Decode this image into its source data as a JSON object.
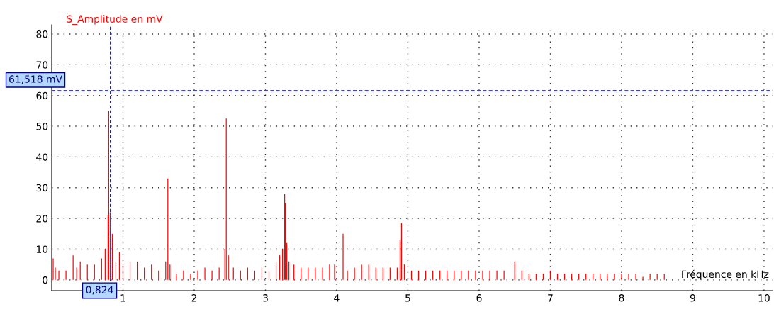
{
  "chart_data": {
    "type": "bar",
    "ylabel": "S_Amplitude en mV",
    "xlabel": "Fréquence en kHz",
    "x": [
      0.02,
      0.05,
      0.1,
      0.2,
      0.3,
      0.35,
      0.4,
      0.5,
      0.6,
      0.7,
      0.75,
      0.79,
      0.8,
      0.82,
      0.85,
      0.9,
      0.95,
      1.0,
      1.1,
      1.2,
      1.3,
      1.4,
      1.5,
      1.6,
      1.63,
      1.66,
      1.75,
      1.85,
      1.95,
      2.05,
      2.15,
      2.25,
      2.35,
      2.43,
      2.45,
      2.48,
      2.55,
      2.65,
      2.75,
      2.85,
      2.95,
      3.05,
      3.15,
      3.2,
      3.24,
      3.27,
      3.28,
      3.3,
      3.33,
      3.4,
      3.5,
      3.6,
      3.7,
      3.8,
      3.9,
      3.97,
      4.09,
      4.15,
      4.25,
      4.35,
      4.45,
      4.55,
      4.65,
      4.75,
      4.85,
      4.89,
      4.91,
      4.95,
      5.05,
      5.15,
      5.25,
      5.35,
      5.45,
      5.55,
      5.65,
      5.75,
      5.85,
      5.95,
      6.05,
      6.15,
      6.25,
      6.35,
      6.5,
      6.6,
      6.7,
      6.8,
      6.9,
      7.0,
      7.1,
      7.2,
      7.3,
      7.4,
      7.5,
      7.6,
      7.7,
      7.8,
      7.9,
      8.0,
      8.1,
      8.2,
      8.3,
      8.4,
      8.5,
      8.6
    ],
    "values": [
      7,
      4,
      3,
      3,
      8,
      4,
      6,
      5,
      5,
      7,
      10,
      21,
      55,
      22,
      15,
      6,
      9,
      5,
      6,
      6,
      4,
      5,
      3,
      6,
      33,
      5,
      2,
      3,
      2,
      3,
      4,
      3,
      4,
      10,
      52.5,
      8,
      4,
      3,
      4,
      3,
      4,
      3,
      6,
      8,
      10,
      28,
      25,
      12,
      6,
      5,
      4,
      4,
      4,
      4,
      5,
      5,
      15,
      3,
      4,
      5,
      5,
      4,
      4,
      4,
      4,
      13,
      18.5,
      5,
      3,
      3,
      3,
      3,
      3,
      3,
      3,
      3,
      3,
      3,
      3,
      3,
      3,
      3,
      6,
      3,
      2,
      2,
      2,
      3,
      2,
      2,
      2,
      2,
      2,
      2,
      2,
      2,
      2,
      2,
      2,
      2,
      1,
      2,
      2,
      2
    ],
    "color": "#ff0000",
    "xlim": [
      0,
      10.12
    ],
    "ylim": [
      -3.5,
      83
    ],
    "xticks": [
      1,
      2,
      3,
      4,
      5,
      6,
      7,
      8,
      9,
      10
    ],
    "yticks": [
      0,
      10,
      20,
      30,
      40,
      50,
      60,
      70,
      80
    ],
    "grid": true,
    "ref_lines": [
      {
        "axis": "x",
        "value": 0.824,
        "label": "0,824",
        "color": "#0000cc",
        "line_style": "dashed"
      },
      {
        "axis": "y",
        "value": 61.518,
        "label": "61,518 mV",
        "color": "#0000cc",
        "line_style": "dashed"
      }
    ]
  }
}
